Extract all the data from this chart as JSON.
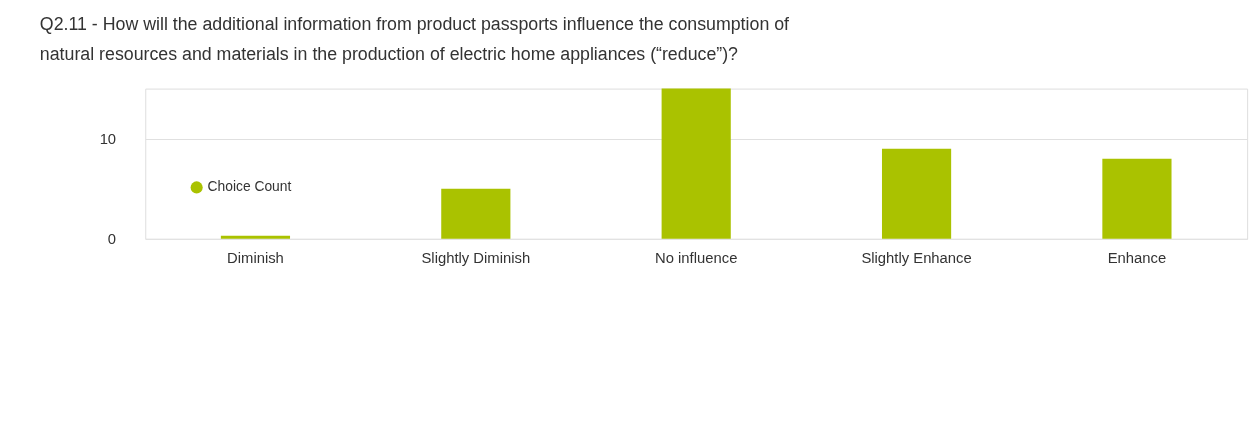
{
  "chart_data": {
    "type": "bar",
    "title": "Q2.11 - How will the additional information from product passports influence the consumption of natural resources and materials in the production of electric home appliances (“reduce”)?",
    "categories": [
      "Diminish",
      "Slightly Diminish",
      "No influence",
      "Slightly Enhance",
      "Enhance"
    ],
    "series": [
      {
        "name": "Choice Count",
        "color": "#aac200",
        "values": [
          0.3,
          5,
          15,
          9,
          8
        ]
      }
    ],
    "ylim": [
      0,
      15
    ],
    "yticks": [
      0,
      10
    ],
    "grid": "y",
    "legend": "bottom left"
  }
}
